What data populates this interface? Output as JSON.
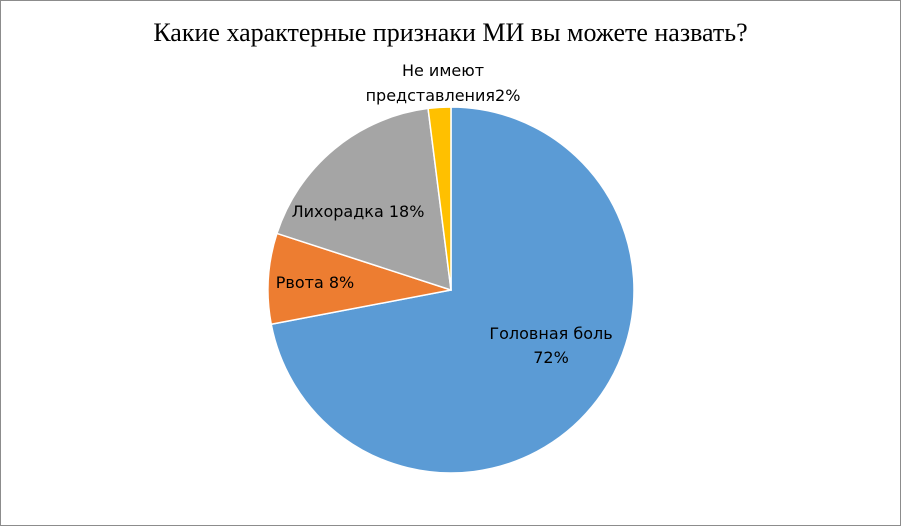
{
  "chart_data": {
    "type": "pie",
    "title": "Какие характерные признаки МИ вы можете назвать?",
    "slices": [
      {
        "label": "Головная боль",
        "percent_label": "72%",
        "value": 72,
        "color": "#5b9bd5"
      },
      {
        "label": "Рвота",
        "percent_label": "8%",
        "value": 8,
        "color": "#ed7d31"
      },
      {
        "label": "Лихорадка",
        "percent_label": "18%",
        "value": 18,
        "color": "#a5a5a5"
      },
      {
        "label": "Не имеют представления",
        "percent_label": "2%",
        "value": 2,
        "color": "#ffc000"
      }
    ],
    "legend": "none"
  }
}
